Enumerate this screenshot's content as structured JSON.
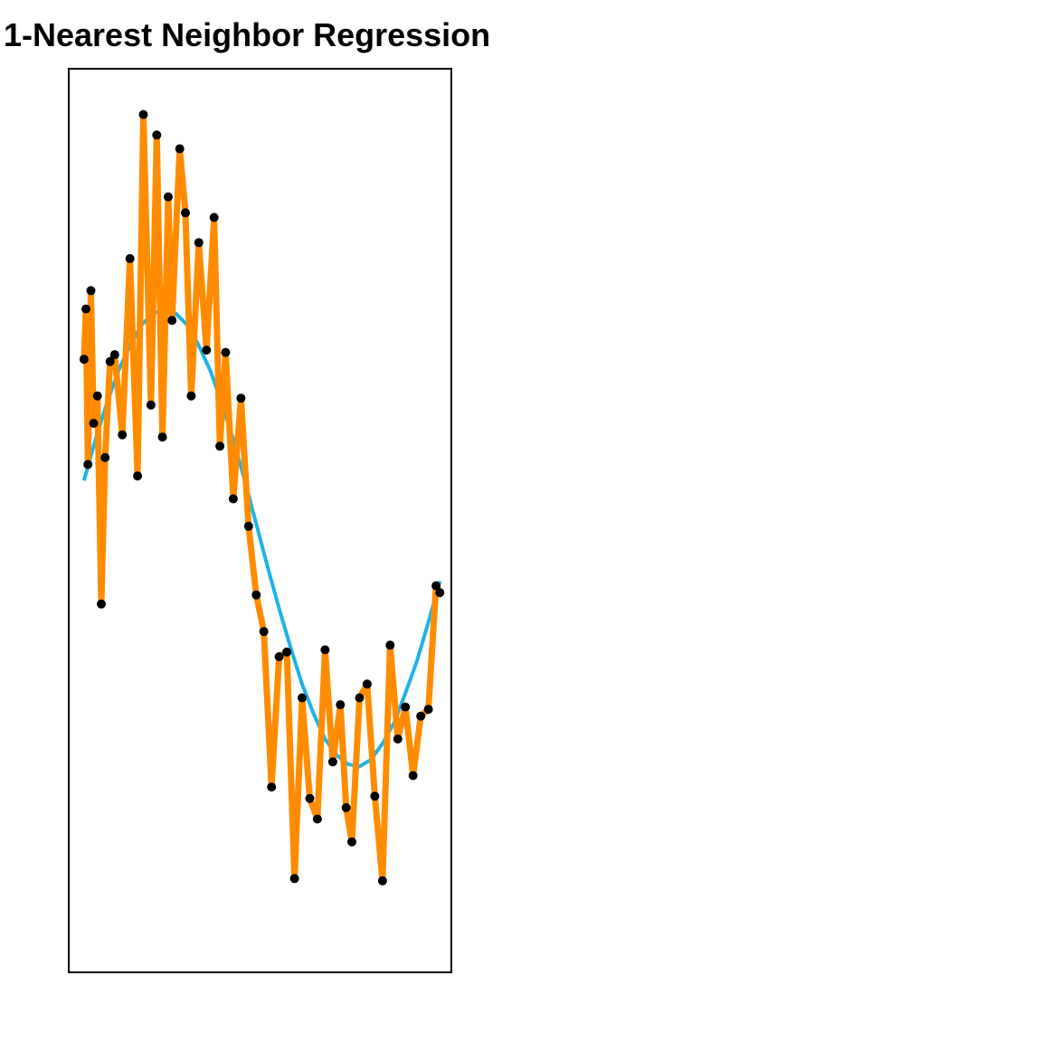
{
  "chart_data": {
    "type": "line",
    "title": "1-Nearest Neighbor Regression",
    "xlabel": "",
    "ylabel": "",
    "xlim": [
      0,
      1
    ],
    "ylim": [
      -1.9,
      2.05
    ],
    "axes_ticks_shown": false,
    "grid": false,
    "legend": "none",
    "colors": {
      "fit": "#FF8C00",
      "truth": "#1FB3E5",
      "points": "#000000",
      "frame": "#000000"
    },
    "series": [
      {
        "role": "truth-curve",
        "function": "sin(2*pi*x)",
        "x": [
          0.04,
          0.07,
          0.1,
          0.13,
          0.16,
          0.19,
          0.22,
          0.25,
          0.28,
          0.31,
          0.34,
          0.37,
          0.4,
          0.43,
          0.46,
          0.49,
          0.52,
          0.55,
          0.58,
          0.61,
          0.64,
          0.67,
          0.7,
          0.73,
          0.76,
          0.79,
          0.82,
          0.85,
          0.88,
          0.91,
          0.94,
          0.97
        ],
        "y": [
          0.25,
          0.43,
          0.59,
          0.73,
          0.84,
          0.93,
          0.98,
          1.0,
          0.98,
          0.93,
          0.84,
          0.73,
          0.59,
          0.43,
          0.25,
          0.06,
          -0.13,
          -0.31,
          -0.48,
          -0.64,
          -0.77,
          -0.88,
          -0.95,
          -0.99,
          -1.0,
          -0.97,
          -0.9,
          -0.81,
          -0.68,
          -0.54,
          -0.37,
          -0.19
        ]
      },
      {
        "role": "1-nn-fit",
        "x": [
          0.04,
          0.045,
          0.05,
          0.058,
          0.065,
          0.075,
          0.085,
          0.095,
          0.108,
          0.12,
          0.14,
          0.16,
          0.18,
          0.195,
          0.215,
          0.23,
          0.245,
          0.26,
          0.27,
          0.29,
          0.305,
          0.32,
          0.34,
          0.36,
          0.38,
          0.395,
          0.41,
          0.43,
          0.45,
          0.47,
          0.49,
          0.51,
          0.53,
          0.55,
          0.57,
          0.59,
          0.61,
          0.63,
          0.65,
          0.67,
          0.69,
          0.71,
          0.725,
          0.74,
          0.76,
          0.78,
          0.8,
          0.82,
          0.84,
          0.86,
          0.88,
          0.9,
          0.92,
          0.94,
          0.96,
          0.97
        ],
        "y": [
          0.78,
          1.0,
          0.32,
          1.08,
          0.5,
          0.62,
          -0.29,
          0.35,
          0.77,
          0.8,
          0.45,
          1.22,
          0.27,
          1.85,
          0.58,
          1.76,
          0.44,
          1.49,
          0.95,
          1.7,
          1.42,
          0.62,
          1.29,
          0.82,
          1.4,
          0.4,
          0.81,
          0.17,
          0.61,
          0.05,
          -0.25,
          -0.41,
          -1.09,
          -0.52,
          -0.5,
          -1.49,
          -0.7,
          -1.14,
          -1.23,
          -0.49,
          -0.98,
          -0.73,
          -1.18,
          -1.33,
          -0.7,
          -0.64,
          -1.13,
          -1.5,
          -0.47,
          -0.88,
          -0.74,
          -1.04,
          -0.78,
          -0.75,
          -0.21,
          -0.24
        ]
      },
      {
        "role": "training-points",
        "x": [
          0.04,
          0.045,
          0.05,
          0.058,
          0.065,
          0.075,
          0.085,
          0.095,
          0.108,
          0.12,
          0.14,
          0.16,
          0.18,
          0.195,
          0.215,
          0.23,
          0.245,
          0.26,
          0.27,
          0.29,
          0.305,
          0.32,
          0.34,
          0.36,
          0.38,
          0.395,
          0.41,
          0.43,
          0.45,
          0.47,
          0.49,
          0.51,
          0.53,
          0.55,
          0.57,
          0.59,
          0.61,
          0.63,
          0.65,
          0.67,
          0.69,
          0.71,
          0.725,
          0.74,
          0.76,
          0.78,
          0.8,
          0.82,
          0.84,
          0.86,
          0.88,
          0.9,
          0.92,
          0.94,
          0.96,
          0.97
        ],
        "y": [
          0.78,
          1.0,
          0.32,
          1.08,
          0.5,
          0.62,
          -0.29,
          0.35,
          0.77,
          0.8,
          0.45,
          1.22,
          0.27,
          1.85,
          0.58,
          1.76,
          0.44,
          1.49,
          0.95,
          1.7,
          1.42,
          0.62,
          1.29,
          0.82,
          1.4,
          0.4,
          0.81,
          0.17,
          0.61,
          0.05,
          -0.25,
          -0.41,
          -1.09,
          -0.52,
          -0.5,
          -1.49,
          -0.7,
          -1.14,
          -1.23,
          -0.49,
          -0.98,
          -0.73,
          -1.18,
          -1.33,
          -0.7,
          -0.64,
          -1.13,
          -1.5,
          -0.47,
          -0.88,
          -0.74,
          -1.04,
          -0.78,
          -0.75,
          -0.21,
          -0.24
        ]
      }
    ]
  }
}
